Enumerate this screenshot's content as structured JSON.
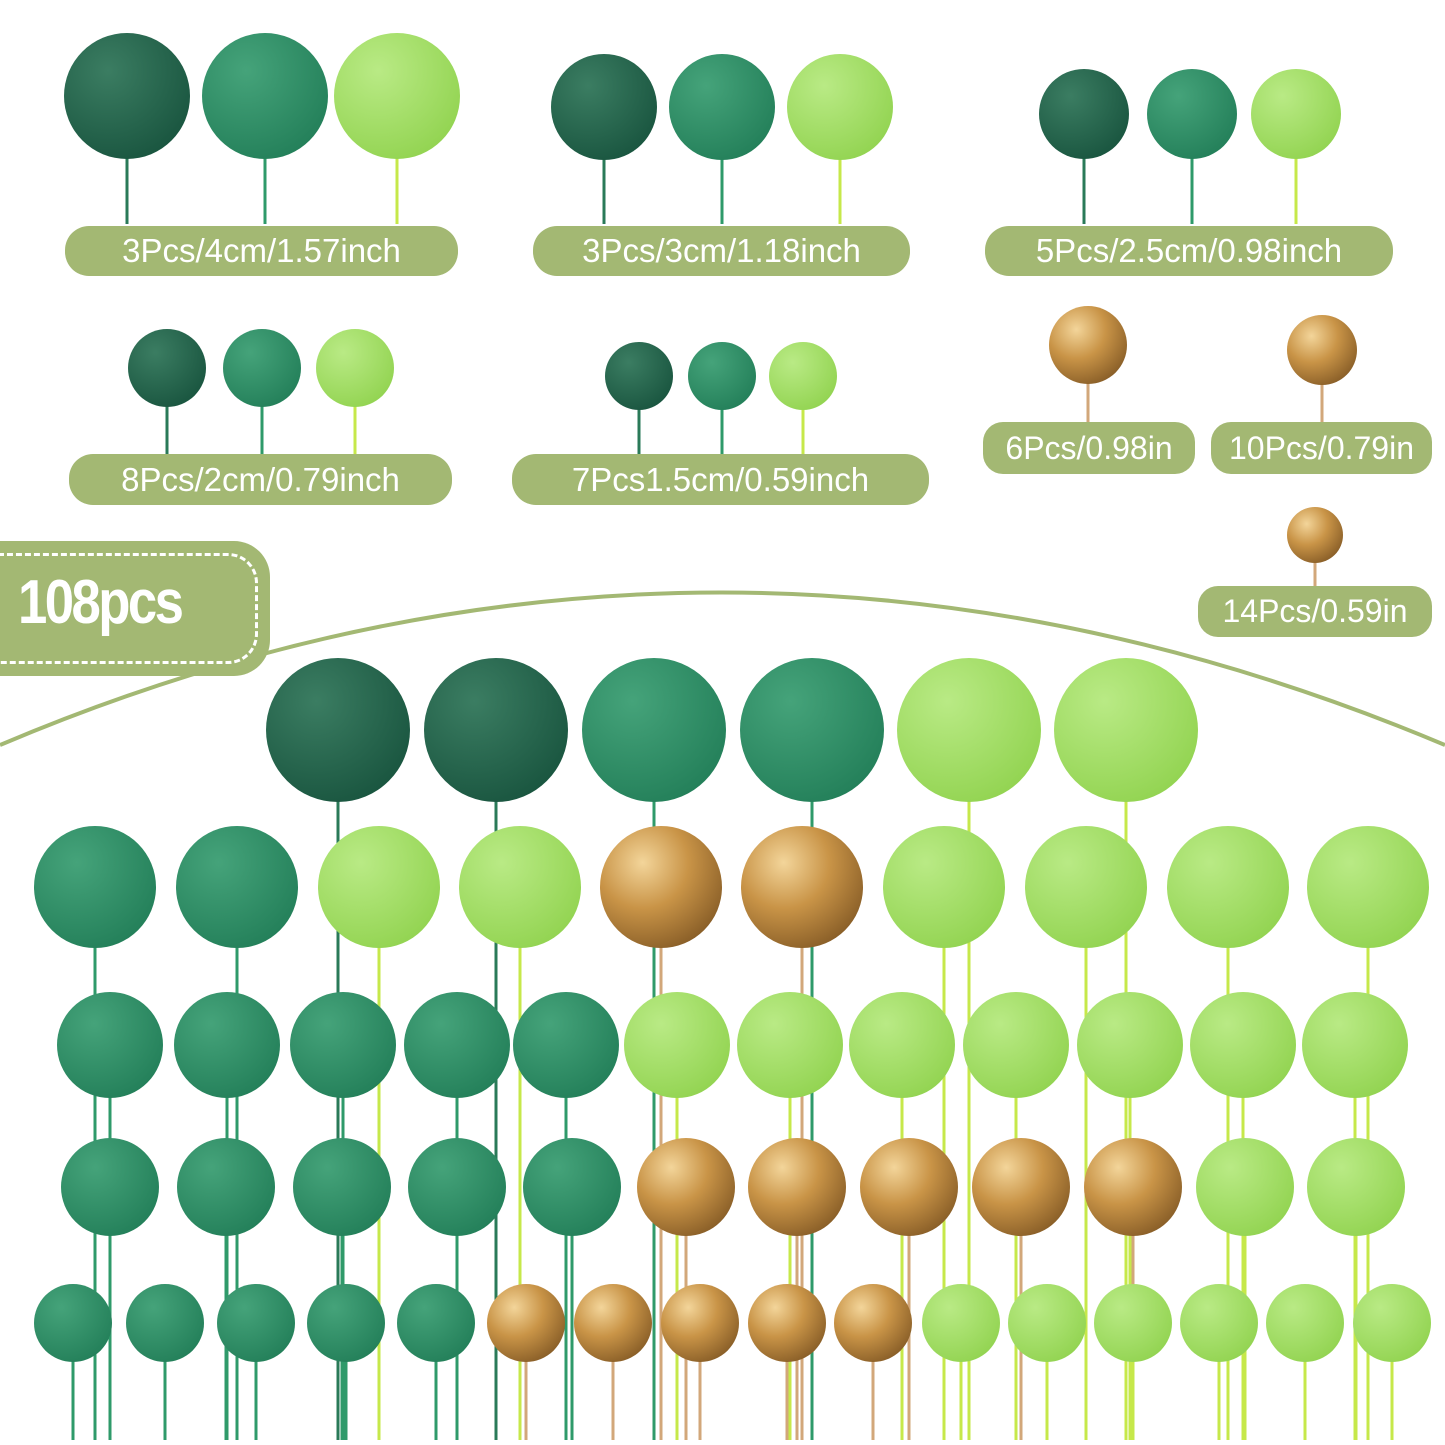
{
  "colors": {
    "dark_green": "#1f5e45",
    "mid_green": "#2a8a62",
    "light_green": "#a2dc62",
    "gold": "#c8964c",
    "label_bg": "#a3b873"
  },
  "labels": [
    "3Pcs/4cm/1.57inch",
    "3Pcs/3cm/1.18inch",
    "5Pcs/2.5cm/0.98inch",
    "8Pcs/2cm/0.79inch",
    "7Pcs1.5cm/0.59inch",
    "6Pcs/0.98in",
    "10Pcs/0.79in",
    "14Pcs/0.59in"
  ],
  "badge": "108pcs"
}
